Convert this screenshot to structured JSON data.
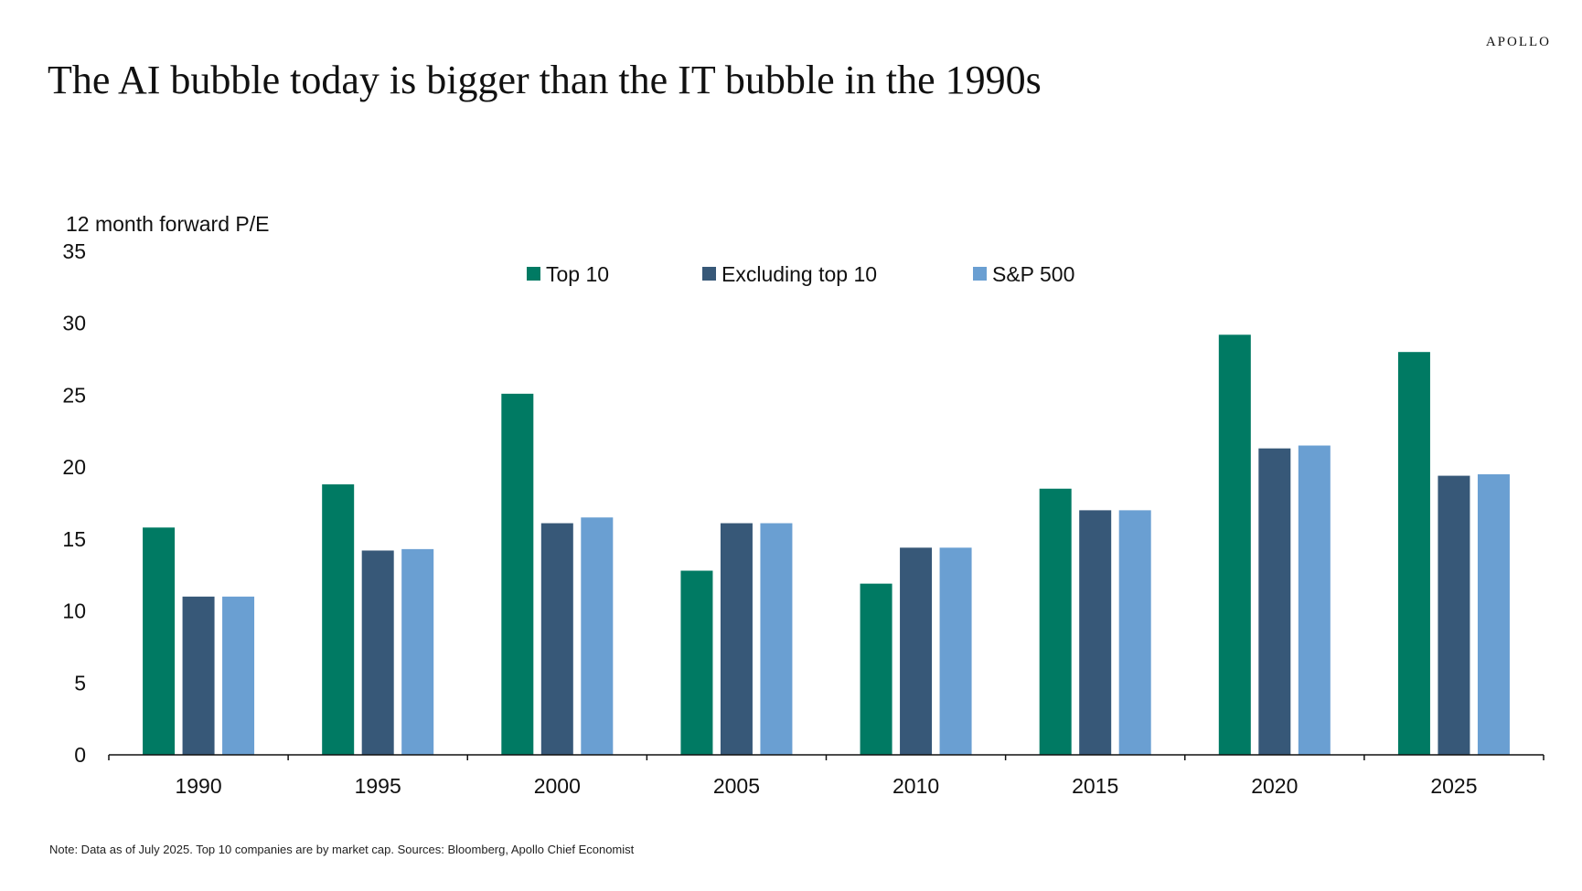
{
  "brand": "APOLLO",
  "title": "The AI bubble today is bigger than the IT bubble in the 1990s",
  "note": "Note: Data as of July 2025. Top 10 companies are by market cap. Sources: Bloomberg, Apollo Chief Economist",
  "chart_data": {
    "type": "bar",
    "title": "The AI bubble today is bigger than the IT bubble in the 1990s",
    "ylabel": "12 month forward P/E",
    "xlabel": "",
    "ylim": [
      0,
      35
    ],
    "yticks": [
      0,
      5,
      10,
      15,
      20,
      25,
      30,
      35
    ],
    "categories": [
      "1990",
      "1995",
      "2000",
      "2005",
      "2010",
      "2015",
      "2020",
      "2025"
    ],
    "grid": false,
    "legend_position": "top-center",
    "series": [
      {
        "name": "Top 10",
        "color": "#007A63",
        "values": [
          15.8,
          18.8,
          25.1,
          12.8,
          11.9,
          18.5,
          29.2,
          28.0
        ]
      },
      {
        "name": "Excluding top 10",
        "color": "#375878",
        "values": [
          11.0,
          14.2,
          16.1,
          16.1,
          14.4,
          17.0,
          21.3,
          19.4
        ]
      },
      {
        "name": "S&P 500",
        "color": "#6A9FD2",
        "values": [
          11.0,
          14.3,
          16.5,
          16.1,
          14.4,
          17.0,
          21.5,
          19.5
        ]
      }
    ]
  }
}
